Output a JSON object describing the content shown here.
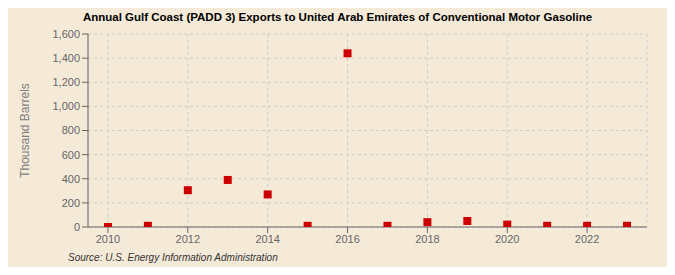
{
  "chart_data": {
    "type": "scatter",
    "title": "Annual Gulf Coast (PADD 3) Exports to United Arab Emirates of Conventional Motor Gasoline",
    "ylabel": "Thousand Barrels",
    "annotations": [
      "Source: U.S. Energy Information Administration"
    ],
    "x": [
      2010,
      2011,
      2012,
      2013,
      2014,
      2015,
      2016,
      2017,
      2018,
      2019,
      2020,
      2021,
      2022,
      2023
    ],
    "values": [
      0,
      10,
      305,
      390,
      270,
      10,
      1440,
      10,
      40,
      50,
      20,
      10,
      10,
      10
    ],
    "color": "#cc0000",
    "marker": "square",
    "xlim": [
      2009.5,
      2023.5
    ],
    "xticks": [
      2010,
      2012,
      2014,
      2016,
      2018,
      2020,
      2022
    ],
    "ylim": [
      0,
      1600
    ],
    "yticks": [
      0,
      200,
      400,
      600,
      800,
      {
        "value": 1000,
        "label": "1,000"
      },
      {
        "value": 1200,
        "label": "1,200"
      },
      {
        "value": 1400,
        "label": "1,400"
      },
      {
        "value": 1600,
        "label": "1,600"
      }
    ],
    "grid": true
  }
}
